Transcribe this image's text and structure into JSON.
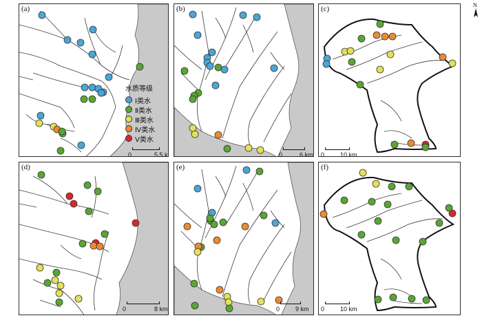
{
  "panels": [
    {
      "id": "a",
      "label": "(a)",
      "scale_zero": "0",
      "scale_text": "5.5 km"
    },
    {
      "id": "b",
      "label": "(b)",
      "scale_zero": "0",
      "scale_text": "6 km"
    },
    {
      "id": "c",
      "label": "(c)",
      "scale_zero": "0",
      "scale_text": "10 km"
    },
    {
      "id": "d",
      "label": "(d)",
      "scale_zero": "0",
      "scale_text": "8 km"
    },
    {
      "id": "e",
      "label": "(e)",
      "scale_zero": "0",
      "scale_text": "9 km"
    },
    {
      "id": "f",
      "label": "(f)",
      "scale_zero": "0",
      "scale_text": "10 km"
    }
  ],
  "legend": {
    "title": "水质等级",
    "items": [
      {
        "label": "Ⅰ类水",
        "color": "#4aa6d6"
      },
      {
        "label": "Ⅱ类水",
        "color": "#5aa632"
      },
      {
        "label": "Ⅲ类水",
        "color": "#e3e05a"
      },
      {
        "label": "Ⅳ类水",
        "color": "#ee8a2f"
      },
      {
        "label": "Ⅴ类水",
        "color": "#d7282a"
      }
    ]
  },
  "north_label": "N",
  "colors": {
    "grade_I": "#4aa6d6",
    "grade_II": "#5aa632",
    "grade_III": "#e3e05a",
    "grade_IV": "#ee8a2f",
    "grade_V": "#d7282a",
    "land": "#c9c9c9",
    "river": "#3a3a3a"
  },
  "sites": {
    "a": {
      "grade_I": 12,
      "grade_II": 6,
      "grade_III": 2,
      "grade_IV": 1,
      "grade_V": 0
    },
    "b": {
      "grade_I": 12,
      "grade_II": 6,
      "grade_III": 3,
      "grade_IV": 1,
      "grade_V": 0
    },
    "c": {
      "grade_I": 2,
      "grade_II": 7,
      "grade_III": 5,
      "grade_IV": 4,
      "grade_V": 1
    },
    "d": {
      "grade_I": 0,
      "grade_II": 12,
      "grade_III": 4,
      "grade_IV": 1,
      "grade_V": 4
    },
    "e": {
      "grade_I": 5,
      "grade_II": 16,
      "grade_III": 3,
      "grade_IV": 4,
      "grade_V": 0
    },
    "f": {
      "grade_I": 0,
      "grade_II": 17,
      "grade_III": 2,
      "grade_IV": 1,
      "grade_V": 1
    }
  }
}
